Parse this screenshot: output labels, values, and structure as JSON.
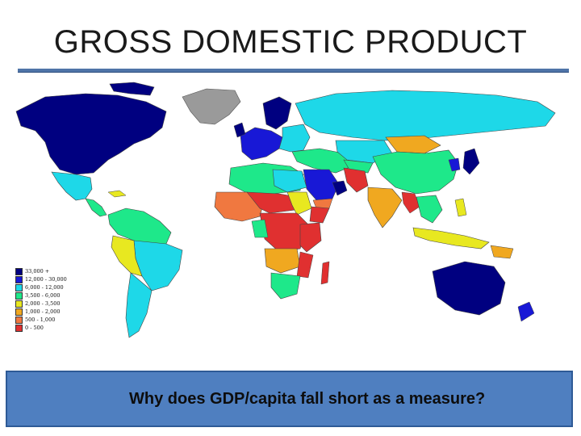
{
  "slide": {
    "title": "GROSS DOMESTIC PRODUCT",
    "caption": "Why does GDP/capita fall short as a measure?"
  },
  "map": {
    "legend": [
      {
        "label": "33,000 +",
        "color": "#000080"
      },
      {
        "label": "12,000 - 30,000",
        "color": "#1818d6"
      },
      {
        "label": "6,000 - 12,000",
        "color": "#1ed8e8"
      },
      {
        "label": "3,500 - 6,000",
        "color": "#1ee88a"
      },
      {
        "label": "2,000 - 3,500",
        "color": "#e8e820"
      },
      {
        "label": "1,000 - 2,000",
        "color": "#f0a820"
      },
      {
        "label": "500 - 1,000",
        "color": "#f07840"
      },
      {
        "label": "0 - 500",
        "color": "#e03030"
      }
    ],
    "colors": {
      "very_high": "#000080",
      "high": "#1818d6",
      "upper_mid": "#1ed8e8",
      "mid": "#1ee88a",
      "lower_mid": "#e8e820",
      "low": "#f0a820",
      "very_low": "#f07840",
      "poorest": "#e03030",
      "no_data": "#9a9a9a"
    }
  }
}
